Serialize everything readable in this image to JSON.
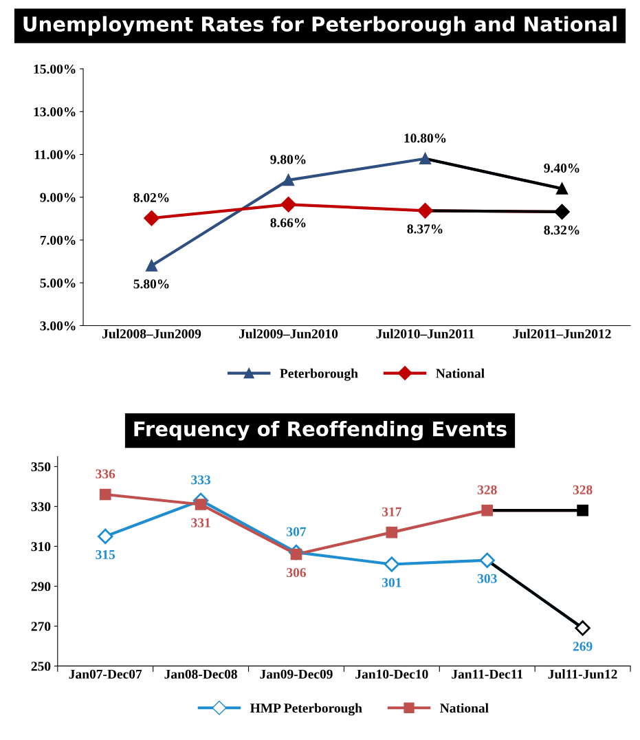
{
  "chart_data": [
    {
      "type": "line",
      "title": "Unemployment Rates for Peterborough and National",
      "categories": [
        "Jul2008–Jun2009",
        "Jul2009–Jun2010",
        "Jul2010–Jun2011",
        "Jul2011–Jun2012"
      ],
      "series": [
        {
          "name": "Peterborough",
          "color": "#2e4f7f",
          "colors": [
            "#2e4f7f",
            "#2e4f7f",
            "#2e4f7f",
            "#000000"
          ],
          "marker": "triangle",
          "values": [
            5.8,
            9.8,
            10.8,
            9.4
          ],
          "value_labels": [
            "5.80%",
            "9.80%",
            "10.80%",
            "9.40%"
          ]
        },
        {
          "name": "National",
          "color": "#c00000",
          "colors": [
            "#c00000",
            "#c00000",
            "#c00000",
            "#000000"
          ],
          "marker": "diamond",
          "values": [
            8.02,
            8.66,
            8.37,
            8.32
          ],
          "value_labels": [
            "8.02%",
            "8.66%",
            "8.37%",
            "8.32%"
          ]
        }
      ],
      "ylim": [
        3,
        15
      ],
      "yticks": [
        {
          "value": 3,
          "label": "3.00%"
        },
        {
          "value": 5,
          "label": "5.00%"
        },
        {
          "value": 7,
          "label": "7.00%"
        },
        {
          "value": 9,
          "label": "9.00%"
        },
        {
          "value": 11,
          "label": "11.00%"
        },
        {
          "value": 13,
          "label": "13.00%"
        },
        {
          "value": 15,
          "label": "15.00%"
        }
      ],
      "grid": false,
      "legend": "bottom"
    },
    {
      "type": "line",
      "title": "Frequency of Reoffending Events",
      "categories": [
        "Jan07-Dec07",
        "Jan08-Dec08",
        "Jan09-Dec09",
        "Jan10-Dec10",
        "Jan11-Dec11",
        "Jul11-Jun12"
      ],
      "series": [
        {
          "name": "HMP Peterborough",
          "color": "#1f8ed0",
          "colors": [
            "#1f8ed0",
            "#1f8ed0",
            "#1f8ed0",
            "#1f8ed0",
            "#1f8ed0",
            "#000000"
          ],
          "marker": "diamond",
          "values": [
            315,
            333,
            307,
            301,
            303,
            269
          ],
          "data_labels": true
        },
        {
          "name": "National",
          "color": "#c0504d",
          "colors": [
            "#c0504d",
            "#c0504d",
            "#c0504d",
            "#c0504d",
            "#c0504d",
            "#000000"
          ],
          "marker": "square",
          "values": [
            336,
            331,
            306,
            317,
            328,
            328
          ],
          "data_labels": true
        }
      ],
      "ylim": [
        250,
        355
      ],
      "yticks": [
        250,
        270,
        290,
        310,
        330,
        350
      ],
      "grid": false,
      "legend": "bottom"
    }
  ]
}
